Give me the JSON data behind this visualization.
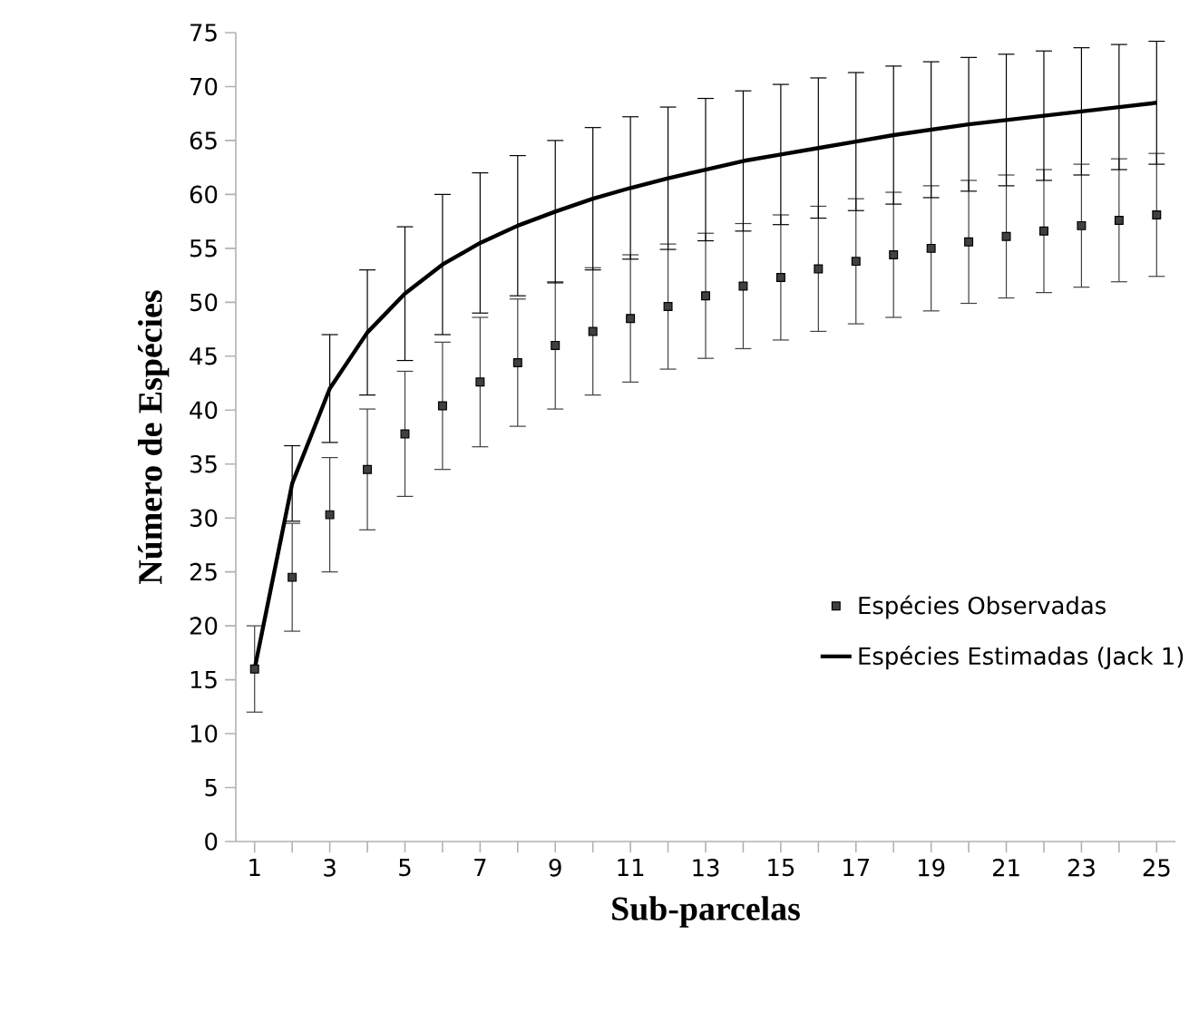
{
  "chart_data": {
    "type": "line",
    "xlabel": "Sub-parcelas",
    "ylabel": "Número de Espécies",
    "x": [
      1,
      2,
      3,
      4,
      5,
      6,
      7,
      8,
      9,
      10,
      11,
      12,
      13,
      14,
      15,
      16,
      17,
      18,
      19,
      20,
      21,
      22,
      23,
      24,
      25
    ],
    "series": [
      {
        "name": "Espécies Observadas",
        "type": "scatter",
        "marker": "square",
        "color": "#404040",
        "values": [
          16,
          24.5,
          30.3,
          34.5,
          37.8,
          40.4,
          42.6,
          44.4,
          46,
          47.3,
          48.5,
          49.6,
          50.6,
          51.5,
          52.3,
          53.1,
          53.8,
          54.4,
          55,
          55.6,
          56.1,
          56.6,
          57.1,
          57.6,
          58.1
        ],
        "errors": [
          4,
          5,
          5.3,
          5.6,
          5.8,
          5.9,
          6,
          5.9,
          5.9,
          5.9,
          5.9,
          5.8,
          5.8,
          5.8,
          5.8,
          5.8,
          5.8,
          5.8,
          5.8,
          5.7,
          5.7,
          5.7,
          5.7,
          5.7,
          5.7
        ]
      },
      {
        "name": "Espécies Estimadas (Jack 1)",
        "marker": "none",
        "color": "#000000",
        "values": [
          16,
          33.2,
          42,
          47.2,
          50.8,
          53.5,
          55.5,
          57.1,
          58.4,
          59.6,
          60.6,
          61.5,
          62.3,
          63.1,
          63.7,
          64.3,
          64.9,
          65.5,
          66,
          66.5,
          66.9,
          67.3,
          67.7,
          68.1,
          68.5
        ],
        "errors": [
          null,
          3.5,
          5,
          5.8,
          6.2,
          6.5,
          6.5,
          6.5,
          6.6,
          6.6,
          6.6,
          6.6,
          6.6,
          6.5,
          6.5,
          6.5,
          6.4,
          6.4,
          6.3,
          6.2,
          6.1,
          6,
          5.9,
          5.8,
          5.7
        ]
      }
    ],
    "xlim": [
      0.5,
      25.5
    ],
    "ylim": [
      0,
      75
    ],
    "xticks": [
      1,
      {
        "value": 2,
        "label": null
      },
      3,
      {
        "value": 4,
        "label": null
      },
      5,
      {
        "value": 6,
        "label": null
      },
      7,
      {
        "value": 8,
        "label": null
      },
      9,
      {
        "value": 10,
        "label": null
      },
      11,
      {
        "value": 12,
        "label": null
      },
      13,
      {
        "value": 14,
        "label": null
      },
      15,
      {
        "value": 16,
        "label": null
      },
      17,
      {
        "value": 18,
        "label": null
      },
      19,
      {
        "value": 20,
        "label": null
      },
      21,
      {
        "value": 22,
        "label": null
      },
      23,
      {
        "value": 24,
        "label": null
      },
      25
    ],
    "yticks": [
      0,
      5,
      10,
      15,
      20,
      25,
      30,
      35,
      40,
      45,
      50,
      55,
      60,
      65,
      70,
      75
    ],
    "grid": false,
    "legend": "right"
  }
}
